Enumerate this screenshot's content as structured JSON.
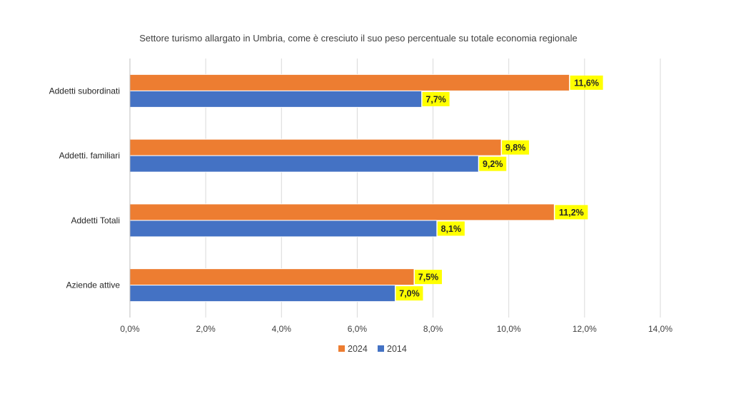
{
  "chart_data": {
    "type": "bar",
    "orientation": "horizontal",
    "title": "Settore turismo allargato in Umbria, come è cresciuto il suo peso percentuale su totale economia regionale",
    "categories": [
      "Addetti subordinati",
      "Addetti. familiari",
      "Addetti Totali",
      "Aziende attive"
    ],
    "series": [
      {
        "name": "2024",
        "color": "#ED7D31",
        "values": [
          11.6,
          9.8,
          11.2,
          7.5
        ],
        "labels": [
          "11,6%",
          "9,8%",
          "11,2%",
          "7,5%"
        ]
      },
      {
        "name": "2014",
        "color": "#4472C4",
        "values": [
          7.7,
          9.2,
          8.1,
          7.0
        ],
        "labels": [
          "7,7%",
          "9,2%",
          "8,1%",
          "7,0%"
        ]
      }
    ],
    "xlim": [
      0,
      14
    ],
    "xticks": [
      0,
      2,
      4,
      6,
      8,
      10,
      12,
      14
    ],
    "xtick_labels": [
      "0,0%",
      "2,0%",
      "4,0%",
      "6,0%",
      "8,0%",
      "10,0%",
      "12,0%",
      "14,0%"
    ],
    "data_label_bg": "#FFFF00",
    "grid": true,
    "legend": "bottom"
  }
}
